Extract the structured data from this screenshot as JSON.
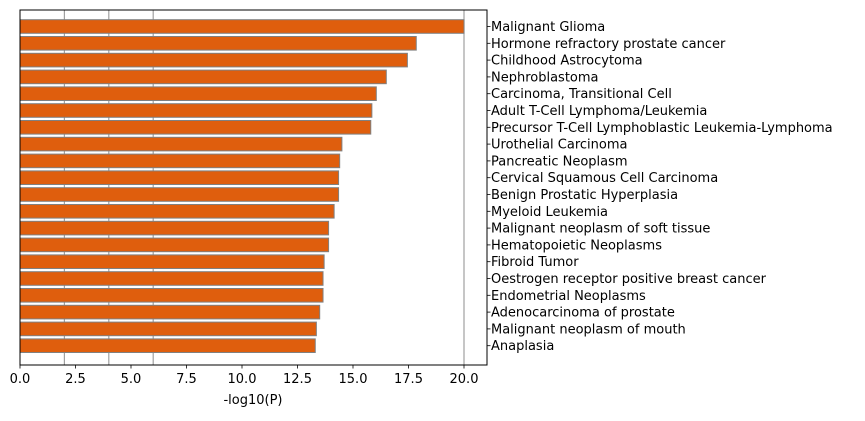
{
  "chart_data": {
    "type": "bar",
    "orientation": "horizontal",
    "xlabel": "-log10(P)",
    "xlim": [
      0,
      21
    ],
    "xticks": [
      "0.0",
      "2.5",
      "5.0",
      "7.5",
      "10.0",
      "12.5",
      "15.0",
      "17.5",
      "20.0"
    ],
    "xtick_values": [
      0,
      2.5,
      5,
      7.5,
      10,
      12.5,
      15,
      17.5,
      20
    ],
    "grid_lines": [
      2,
      4,
      6,
      20
    ],
    "bar_color": "#df5e0d",
    "bar_edge_color": "#808080",
    "grid_color": "#a0a0a0",
    "categories": [
      "Malignant Glioma",
      "Hormone refractory prostate cancer",
      "Childhood Astrocytoma",
      "Nephroblastoma",
      "Carcinoma, Transitional Cell",
      "Adult T-Cell Lymphoma/Leukemia",
      "Precursor T-Cell Lymphoblastic Leukemia-Lymphoma",
      "Urothelial Carcinoma",
      "Pancreatic Neoplasm",
      "Cervical Squamous Cell Carcinoma",
      "Benign Prostatic Hyperplasia",
      "Myeloid Leukemia",
      "Malignant neoplasm of soft tissue",
      "Hematopoietic Neoplasms",
      "Fibroid Tumor",
      "Oestrogen receptor positive breast cancer",
      "Endometrial Neoplasms",
      "Adenocarcinoma of prostate",
      "Malignant neoplasm of mouth",
      "Anaplasia"
    ],
    "values": [
      20.0,
      17.85,
      17.45,
      16.5,
      16.05,
      15.85,
      15.8,
      14.5,
      14.4,
      14.35,
      14.35,
      14.15,
      13.9,
      13.9,
      13.7,
      13.65,
      13.65,
      13.5,
      13.35,
      13.3
    ]
  }
}
